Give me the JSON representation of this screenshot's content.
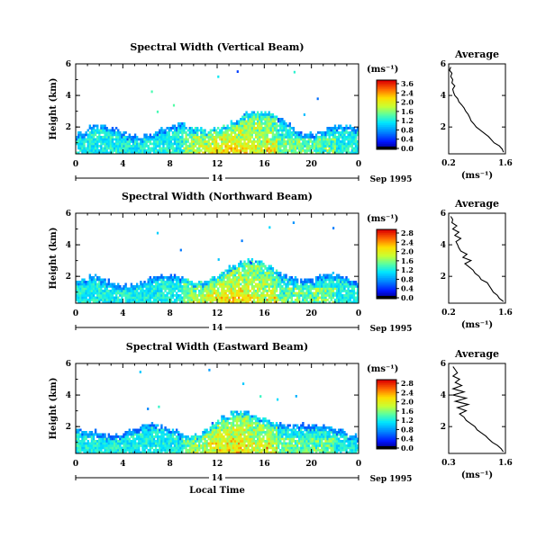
{
  "chart_data": [
    {
      "type": "heatmap",
      "title": "Spectral Width (Vertical Beam)",
      "ylabel": "Height (km)",
      "x_ticks": [
        "0",
        "4",
        "8",
        "12",
        "16",
        "20",
        "0"
      ],
      "y_ticks": [
        "6",
        "4",
        "2"
      ],
      "xlim": [
        0,
        24
      ],
      "ylim": [
        0.3,
        6.0
      ],
      "day_label": "14",
      "date_label": "Sep 1995",
      "colorbar": {
        "unit": "(ms⁻¹)",
        "ticks": [
          "3.6",
          "2.4",
          "2.0",
          "1.6",
          "1.2",
          "0.8",
          "0.4",
          "0.0"
        ]
      },
      "profile": {
        "title": "Average",
        "xlabel": "(ms⁻¹)",
        "x_ticks": [
          "0.2",
          "1.6"
        ],
        "xlim": [
          0.2,
          1.6
        ],
        "y_ticks": [
          "6",
          "4",
          "2"
        ],
        "ylim": [
          0.3,
          6.0
        ],
        "heights": [
          0.4,
          0.6,
          0.8,
          1.0,
          1.2,
          1.4,
          1.6,
          1.8,
          2.0,
          2.2,
          2.4,
          2.6,
          2.8,
          3.0,
          3.2,
          3.4,
          3.6,
          3.8,
          4.0,
          4.2,
          4.4,
          4.6,
          4.8,
          5.0,
          5.2,
          5.4,
          5.6,
          5.8
        ],
        "values": [
          1.55,
          1.52,
          1.45,
          1.32,
          1.25,
          1.18,
          1.08,
          0.98,
          0.88,
          0.82,
          0.75,
          0.72,
          0.68,
          0.62,
          0.58,
          0.52,
          0.45,
          0.42,
          0.35,
          0.32,
          0.3,
          0.35,
          0.28,
          0.3,
          0.25,
          0.28,
          0.22,
          0.25
        ]
      }
    },
    {
      "type": "heatmap",
      "title": "Spectral Width (Northward Beam)",
      "ylabel": "Height (km)",
      "x_ticks": [
        "0",
        "4",
        "8",
        "12",
        "16",
        "20",
        "0"
      ],
      "y_ticks": [
        "6",
        "4",
        "2"
      ],
      "xlim": [
        0,
        24
      ],
      "ylim": [
        0.3,
        6.0
      ],
      "day_label": "14",
      "date_label": "Sep 1995",
      "colorbar": {
        "unit": "(ms⁻¹)",
        "ticks": [
          "2.8",
          "2.4",
          "2.0",
          "1.6",
          "1.2",
          "0.8",
          "0.4",
          "0.0"
        ]
      },
      "profile": {
        "title": "Average",
        "xlabel": "(ms⁻¹)",
        "x_ticks": [
          "0.2",
          "1.6"
        ],
        "xlim": [
          0.2,
          1.6
        ],
        "y_ticks": [
          "6",
          "4",
          "2"
        ],
        "ylim": [
          0.3,
          6.0
        ],
        "heights": [
          0.4,
          0.6,
          0.8,
          1.0,
          1.2,
          1.4,
          1.6,
          1.8,
          2.0,
          2.2,
          2.4,
          2.6,
          2.8,
          3.0,
          3.2,
          3.4,
          3.6,
          3.8,
          4.0,
          4.2,
          4.4,
          4.6,
          4.8,
          5.0,
          5.2,
          5.4,
          5.6,
          5.8
        ],
        "values": [
          1.55,
          1.45,
          1.4,
          1.3,
          1.25,
          1.2,
          1.15,
          1.0,
          0.95,
          0.85,
          0.8,
          0.7,
          0.6,
          0.75,
          0.55,
          0.65,
          0.5,
          0.45,
          0.42,
          0.38,
          0.5,
          0.35,
          0.45,
          0.3,
          0.4,
          0.28,
          0.3,
          0.25
        ]
      }
    },
    {
      "type": "heatmap",
      "title": "Spectral Width (Eastward Beam)",
      "ylabel": "Height (km)",
      "x_ticks": [
        "0",
        "4",
        "8",
        "12",
        "16",
        "20",
        "0"
      ],
      "y_ticks": [
        "6",
        "4",
        "2"
      ],
      "xlim": [
        0,
        24
      ],
      "ylim": [
        0.3,
        6.0
      ],
      "day_label": "14",
      "date_label": "Sep 1995",
      "xlabel": "Local Time",
      "colorbar": {
        "unit": "(ms⁻¹)",
        "ticks": [
          "2.8",
          "2.4",
          "2.0",
          "1.6",
          "1.2",
          "0.8",
          "0.4",
          "0.0"
        ]
      },
      "profile": {
        "title": "Average",
        "xlabel": "(ms⁻¹)",
        "x_ticks": [
          "0.3",
          "1.6"
        ],
        "xlim": [
          0.3,
          1.6
        ],
        "y_ticks": [
          "6",
          "4",
          "2"
        ],
        "ylim": [
          0.3,
          6.0
        ],
        "heights": [
          0.4,
          0.6,
          0.8,
          1.0,
          1.2,
          1.4,
          1.6,
          1.8,
          2.0,
          2.2,
          2.4,
          2.6,
          2.8,
          3.0,
          3.2,
          3.4,
          3.6,
          3.8,
          4.0,
          4.2,
          4.4,
          4.6,
          4.8,
          5.0,
          5.2,
          5.4,
          5.6,
          5.8
        ],
        "values": [
          1.55,
          1.5,
          1.42,
          1.3,
          1.22,
          1.15,
          1.05,
          0.95,
          0.9,
          0.8,
          0.7,
          0.65,
          0.55,
          0.7,
          0.5,
          0.75,
          0.45,
          0.7,
          0.4,
          0.65,
          0.4,
          0.6,
          0.45,
          0.55,
          0.4,
          0.5,
          0.45,
          0.4
        ]
      }
    }
  ]
}
